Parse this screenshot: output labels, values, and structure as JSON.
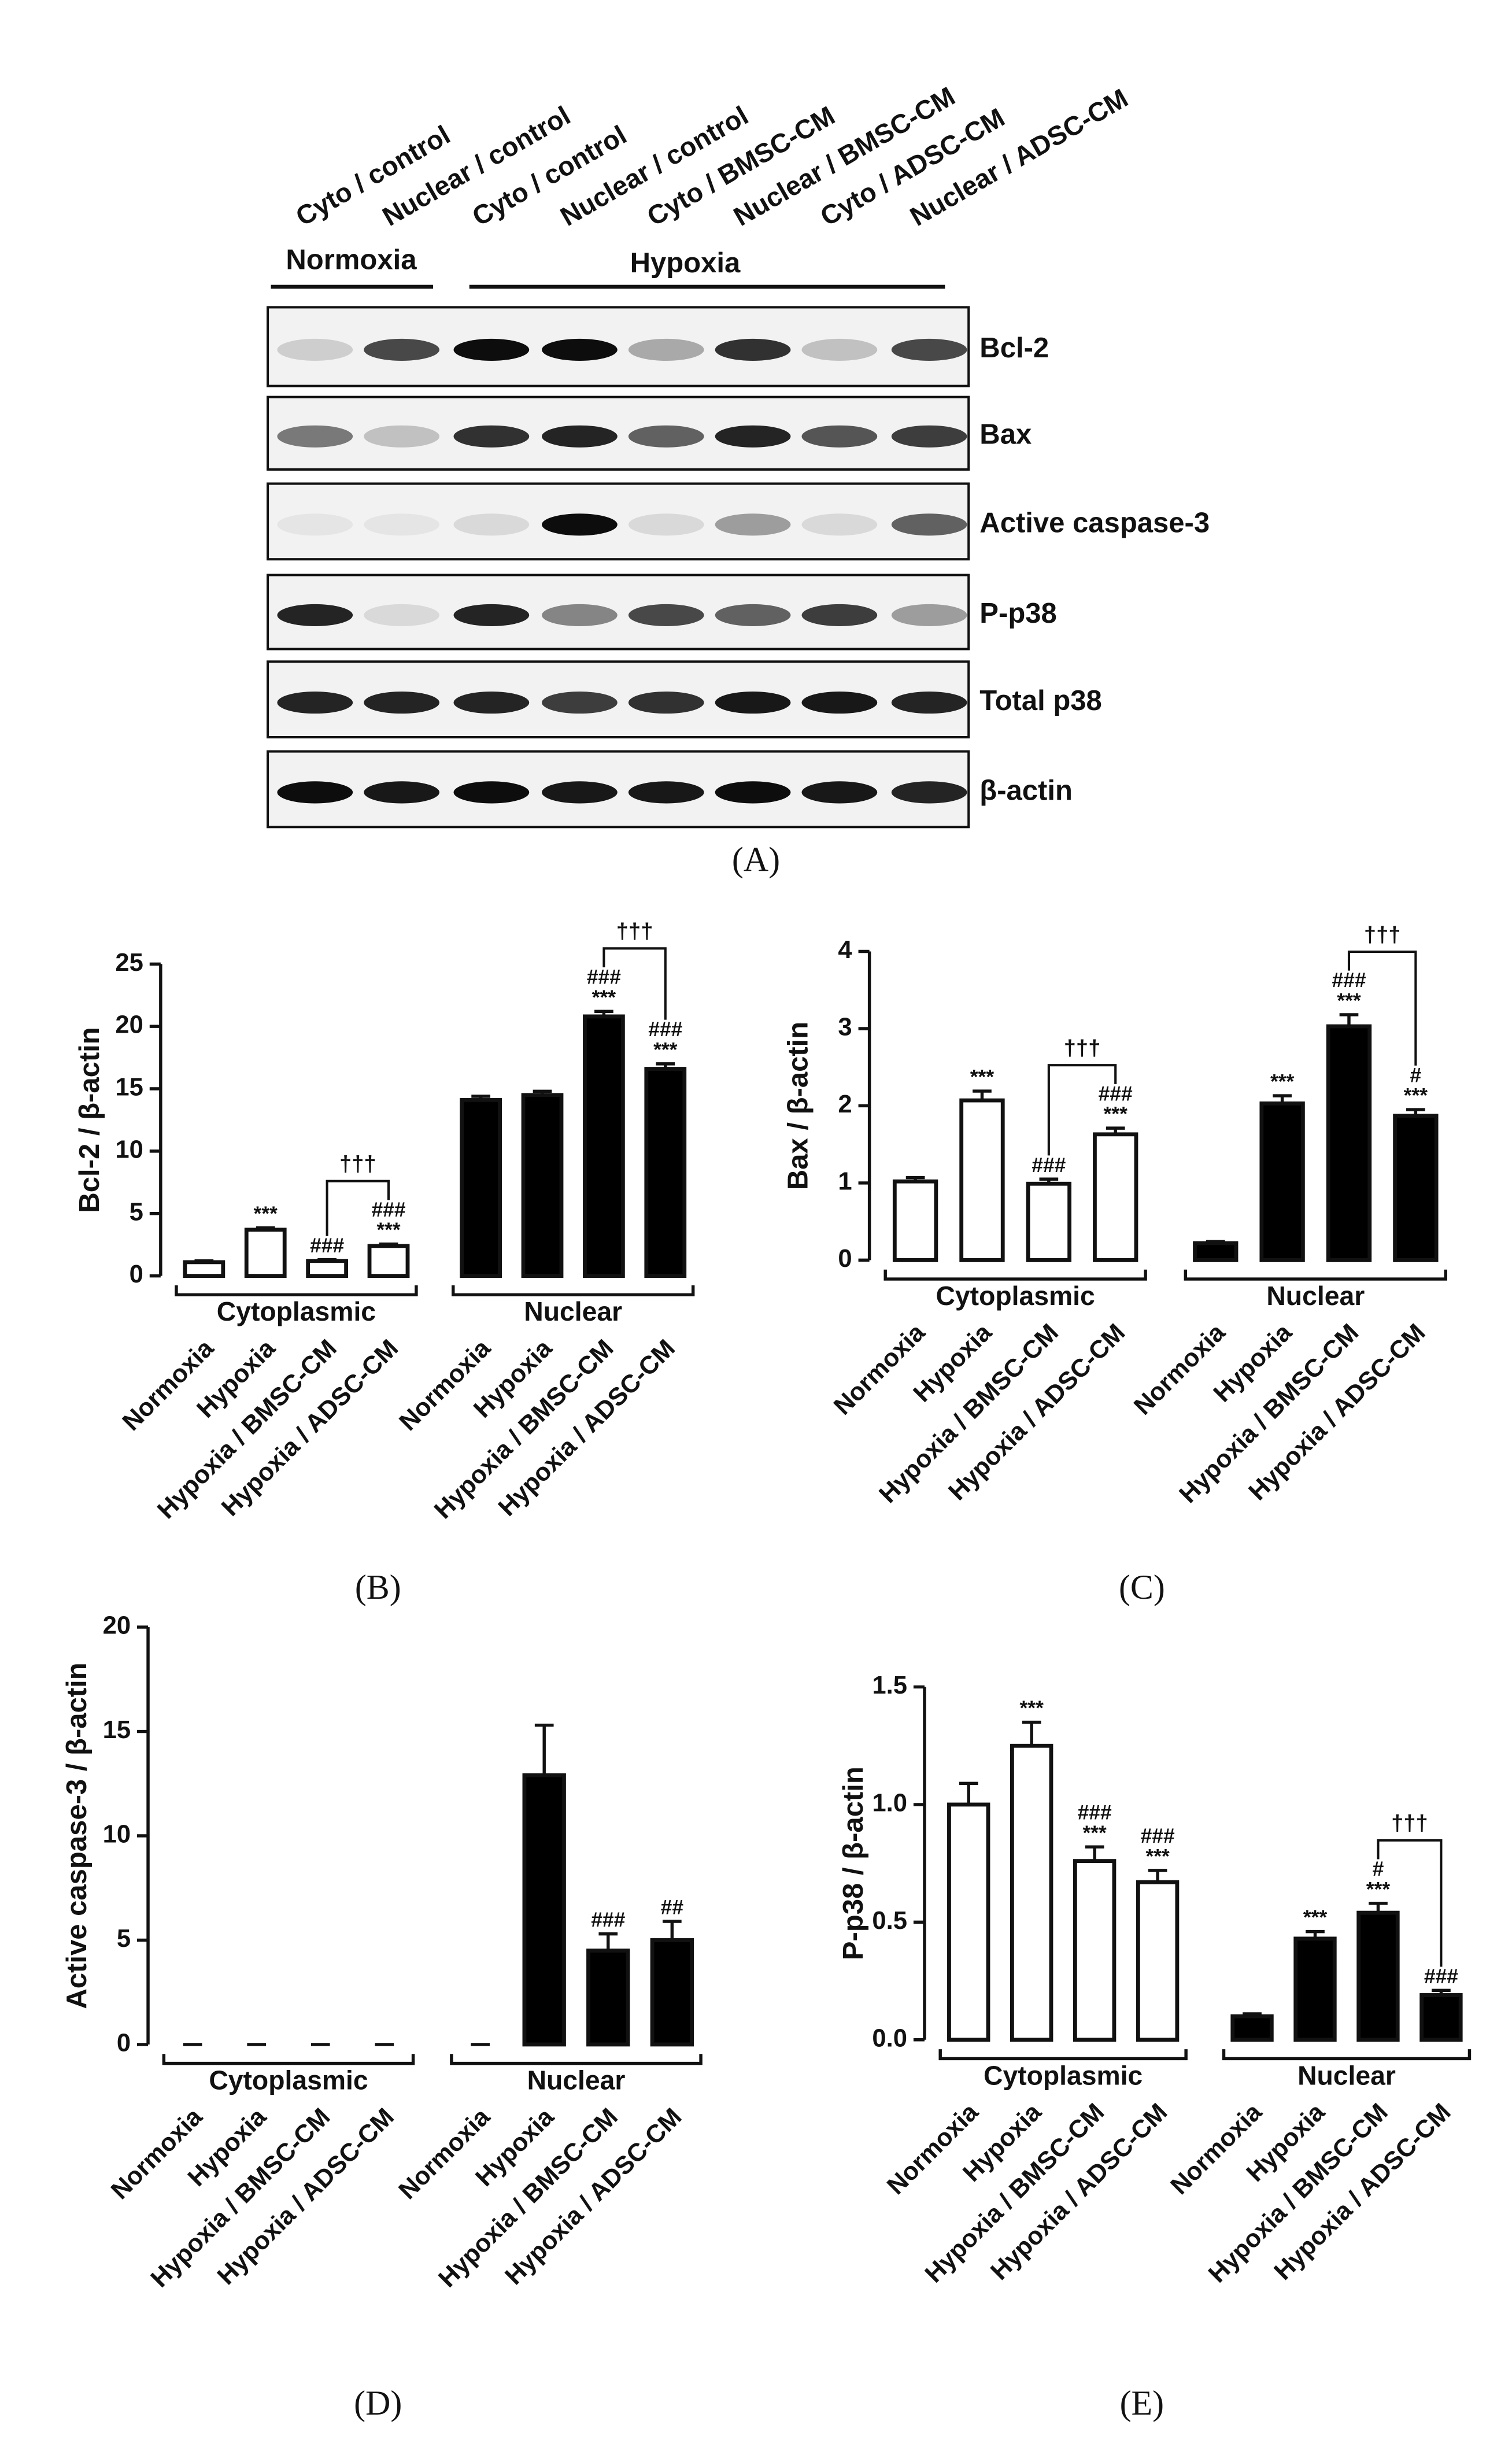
{
  "blot": {
    "lanes": [
      "Cyto / control",
      "Nuclear / control",
      "Cyto / control",
      "Nuclear / control",
      "Cyto / BMSC-CM",
      "Nuclear / BMSC-CM",
      "Cyto / ADSC-CM",
      "Nuclear / ADSC-CM"
    ],
    "groups": [
      "Normoxia",
      "Hypoxia"
    ],
    "bands": [
      "Bcl-2",
      "Bax",
      "Active caspase-3",
      "P-p38",
      "Total p38",
      "β-actin"
    ],
    "panel": "(A)"
  },
  "chart_data": [
    {
      "type": "bar",
      "panel": "(B)",
      "ylabel": "Bcl-2 / β-actin",
      "categories": [
        "Normoxia",
        "Hypoxia",
        "Hypoxia / BMSC-CM",
        "Hypoxia / ADSC-CM",
        "Normoxia",
        "Hypoxia",
        "Hypoxia / BMSC-CM",
        "Hypoxia / ADSC-CM"
      ],
      "groups": [
        "Cytoplasmic",
        "Nuclear"
      ],
      "values": [
        1.1,
        3.7,
        1.2,
        2.4,
        14.1,
        14.5,
        20.8,
        16.6
      ],
      "errors": [
        0.1,
        0.15,
        0.1,
        0.15,
        0.3,
        0.3,
        0.4,
        0.4
      ],
      "bar_colors": [
        "#ffffff",
        "#ffffff",
        "#ffffff",
        "#ffffff",
        "#000000",
        "#000000",
        "#000000",
        "#000000"
      ],
      "annotations": [
        null,
        [
          "***"
        ],
        [
          "###"
        ],
        [
          "###",
          "***"
        ],
        null,
        null,
        [
          "###",
          "***"
        ],
        [
          "###",
          "***"
        ]
      ],
      "brackets": [
        "†††",
        "†††"
      ],
      "ylim": [
        0,
        25
      ],
      "yticks": [
        0,
        5,
        10,
        15,
        20,
        25
      ]
    },
    {
      "type": "bar",
      "panel": "(C)",
      "ylabel": "Bax / β-actin",
      "categories": [
        "Normoxia",
        "Hypoxia",
        "Hypoxia / BMSC-CM",
        "Hypoxia / ADSC-CM",
        "Normoxia",
        "Hypoxia",
        "Hypoxia / BMSC-CM",
        "Hypoxia / ADSC-CM"
      ],
      "groups": [
        "Cytoplasmic",
        "Nuclear"
      ],
      "values": [
        1.02,
        2.07,
        0.99,
        1.63,
        0.22,
        2.03,
        3.03,
        1.87
      ],
      "errors": [
        0.05,
        0.12,
        0.06,
        0.08,
        0.02,
        0.1,
        0.15,
        0.08
      ],
      "bar_colors": [
        "#ffffff",
        "#ffffff",
        "#ffffff",
        "#ffffff",
        "#000000",
        "#000000",
        "#000000",
        "#000000"
      ],
      "annotations": [
        null,
        [
          "***"
        ],
        [
          "###"
        ],
        [
          "###",
          "***"
        ],
        null,
        [
          "***"
        ],
        [
          "###",
          "***"
        ],
        [
          "#",
          "***"
        ]
      ],
      "brackets": [
        "†††",
        "†††"
      ],
      "ylim": [
        0,
        4
      ],
      "yticks": [
        0,
        1,
        2,
        3,
        4
      ]
    },
    {
      "type": "bar",
      "panel": "(D)",
      "ylabel": "Active caspase-3 / β-actin",
      "categories": [
        "Normoxia",
        "Hypoxia",
        "Hypoxia / BMSC-CM",
        "Hypoxia / ADSC-CM",
        "Normoxia",
        "Hypoxia",
        "Hypoxia / BMSC-CM",
        "Hypoxia / ADSC-CM"
      ],
      "groups": [
        "Cytoplasmic",
        "Nuclear"
      ],
      "values": [
        0,
        0,
        0,
        0,
        0,
        12.9,
        4.5,
        5.0
      ],
      "errors": [
        0,
        0,
        0,
        0,
        0,
        2.4,
        0.8,
        0.9
      ],
      "bar_colors": [
        "#ffffff",
        "#ffffff",
        "#ffffff",
        "#ffffff",
        "#000000",
        "#000000",
        "#000000",
        "#000000"
      ],
      "annotations": [
        null,
        null,
        null,
        null,
        null,
        null,
        [
          "###"
        ],
        [
          "##"
        ]
      ],
      "ylim": [
        0,
        20
      ],
      "yticks": [
        0,
        5,
        10,
        15,
        20
      ]
    },
    {
      "type": "bar",
      "panel": "(E)",
      "ylabel": "P-p38 / β-actin",
      "categories": [
        "Normoxia",
        "Hypoxia",
        "Hypoxia / BMSC-CM",
        "Hypoxia / ADSC-CM",
        "Normoxia",
        "Hypoxia",
        "Hypoxia / BMSC-CM",
        "Hypoxia / ADSC-CM"
      ],
      "groups": [
        "Cytoplasmic",
        "Nuclear"
      ],
      "values": [
        1.0,
        1.25,
        0.76,
        0.67,
        0.1,
        0.43,
        0.54,
        0.19
      ],
      "errors": [
        0.09,
        0.1,
        0.06,
        0.05,
        0.01,
        0.03,
        0.04,
        0.02
      ],
      "bar_colors": [
        "#ffffff",
        "#ffffff",
        "#ffffff",
        "#ffffff",
        "#000000",
        "#000000",
        "#000000",
        "#000000"
      ],
      "annotations": [
        null,
        [
          "***"
        ],
        [
          "###",
          "***"
        ],
        [
          "###",
          "***"
        ],
        null,
        [
          "***"
        ],
        [
          "#",
          "***"
        ],
        [
          "###"
        ]
      ],
      "brackets": [
        "†††"
      ],
      "ylim": [
        0,
        1.5
      ],
      "yticks": [
        {
          "value": 0,
          "label": "0.0"
        },
        0.5,
        {
          "value": 1,
          "label": "1.0"
        },
        1.5
      ]
    }
  ]
}
